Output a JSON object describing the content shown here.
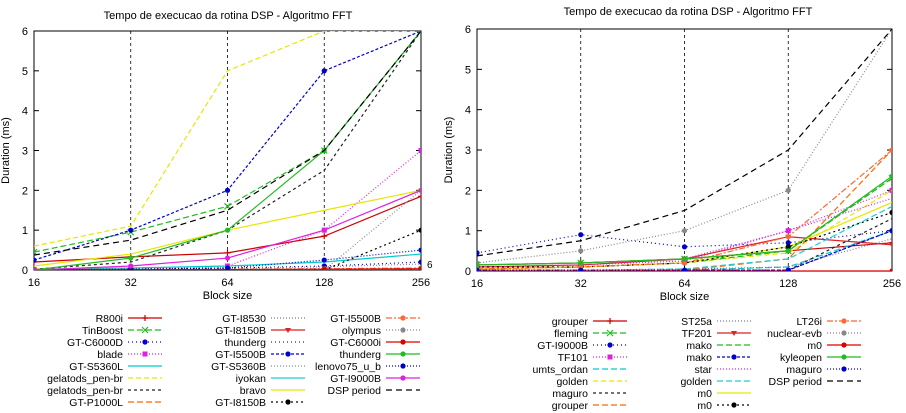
{
  "chart_data": [
    {
      "type": "line",
      "title": "Tempo de execucao da rotina DSP - Algoritmo FFT",
      "xlabel": "Block size",
      "ylabel": "Duration (ms)",
      "xlim": [
        16,
        256
      ],
      "ylim": [
        0,
        6
      ],
      "x_ticks": [
        16,
        32,
        64,
        128,
        256
      ],
      "x_tick_labels": [
        "16",
        "32",
        "64",
        "128",
        "256"
      ],
      "y_ticks": [
        0,
        1,
        2,
        3,
        4,
        5,
        6
      ],
      "grid": "vertical dashed at x ticks",
      "legend_position": "bottom",
      "annotations": [
        {
          "x": 256,
          "y": 0.15,
          "text": "6"
        }
      ],
      "x": [
        16,
        32,
        64,
        128,
        256
      ],
      "series": [
        {
          "name": "R800i",
          "color": "#cc0000",
          "dash": "",
          "marker": "plus",
          "values": [
            0.2,
            0.33,
            0.43,
            0.85,
            1.85
          ]
        },
        {
          "name": "TinBoost",
          "color": "#22bb22",
          "dash": "6,3",
          "marker": "cross",
          "values": [
            0.45,
            0.95,
            1.6,
            3.0,
            6.0
          ]
        },
        {
          "name": "GT-C6000D",
          "color": "#0000cc",
          "dash": "1,3",
          "marker": "dot",
          "values": [
            0.01,
            0.02,
            0.05,
            0.1,
            0.2
          ]
        },
        {
          "name": "blade",
          "color": "#dd22dd",
          "dash": "1,2",
          "marker": "square",
          "values": [
            0.01,
            0.03,
            0.1,
            1.0,
            3.0
          ]
        },
        {
          "name": "GT-S5360L",
          "color": "#00cccc",
          "dash": "",
          "marker": "none",
          "values": [
            0.02,
            0.05,
            0.1,
            0.2,
            0.4
          ]
        },
        {
          "name": "gelatods_pen-br",
          "color": "#e6e600",
          "dash": "5,3",
          "marker": "none",
          "values": [
            0.6,
            1.1,
            5.0,
            6.0,
            6.0
          ]
        },
        {
          "name": "gelatods_pen-br",
          "color": "#222222",
          "dash": "3,3",
          "marker": "none",
          "values": [
            0.02,
            0.2,
            1.0,
            2.5,
            6.0
          ]
        },
        {
          "name": "GT-P1000L",
          "color": "#ff6600",
          "dash": "6,3",
          "marker": "none",
          "values": [
            0.01,
            0.01,
            0.01,
            0.01,
            0.02
          ]
        },
        {
          "name": "GT-I8530",
          "color": "#7777aa",
          "dash": "1,2",
          "marker": "none",
          "values": [
            0.01,
            0.01,
            0.01,
            0.01,
            0.02
          ]
        },
        {
          "name": "GT-I8150B",
          "color": "#dd2222",
          "dash": "",
          "marker": "triangle",
          "values": [
            0.0,
            0.0,
            0.0,
            0.0,
            0.02
          ]
        },
        {
          "name": "thunderg",
          "color": "#333333",
          "dash": "1,3",
          "marker": "none",
          "values": [
            0.01,
            0.01,
            0.02,
            0.03,
            0.05
          ]
        },
        {
          "name": "GT-I5500B",
          "color": "#0000cc",
          "dash": "3,2",
          "marker": "dot",
          "values": [
            0.25,
            1.0,
            2.0,
            5.0,
            6.0
          ]
        },
        {
          "name": "GT-S5360B",
          "color": "#8888cc",
          "dash": "1,2",
          "marker": "none",
          "values": [
            0.01,
            0.02,
            0.04,
            0.08,
            0.15
          ]
        },
        {
          "name": "iyokan",
          "color": "#22cccc",
          "dash": "",
          "marker": "none",
          "values": [
            0.01,
            0.01,
            0.01,
            0.02,
            0.03
          ]
        },
        {
          "name": "bravo",
          "color": "#e6e600",
          "dash": "",
          "marker": "none",
          "values": [
            0.1,
            0.4,
            1.0,
            1.5,
            2.0
          ]
        },
        {
          "name": "GT-I8150B",
          "color": "#000000",
          "dash": "2,3",
          "marker": "dot",
          "values": [
            0.0,
            0.0,
            0.0,
            0.0,
            1.0
          ]
        },
        {
          "name": "GT-I5500B",
          "color": "#ff6633",
          "dash": "6,2,2,2",
          "marker": "dot",
          "values": [
            0.02,
            0.02,
            0.02,
            0.03,
            0.05
          ]
        },
        {
          "name": "olympus",
          "color": "#888888",
          "dash": "1,2",
          "marker": "dot",
          "values": [
            0.0,
            0.0,
            0.0,
            0.0,
            2.0
          ]
        },
        {
          "name": "GT-C6000i",
          "color": "#dd0000",
          "dash": "",
          "marker": "dot",
          "values": [
            0.01,
            0.01,
            0.01,
            0.02,
            0.03
          ]
        },
        {
          "name": "thunderg",
          "color": "#22bb22",
          "dash": "",
          "marker": "dot",
          "values": [
            0.0,
            0.3,
            1.0,
            3.0,
            6.0
          ]
        },
        {
          "name": "lenovo75_u_b",
          "color": "#0000cc",
          "dash": "1,2",
          "marker": "dot",
          "values": [
            0.0,
            0.02,
            0.05,
            0.25,
            0.5
          ]
        },
        {
          "name": "GT-I9000B",
          "color": "#dd22dd",
          "dash": "",
          "marker": "dot",
          "values": [
            0.0,
            0.1,
            0.3,
            1.0,
            2.0
          ]
        },
        {
          "name": "DSP period",
          "color": "#000000",
          "dash": "6,4",
          "marker": "none",
          "values": [
            0.375,
            0.75,
            1.5,
            3.0,
            6.0
          ]
        }
      ],
      "legend_entries": [
        "R800i",
        "TinBoost",
        "GT-C6000D",
        "blade",
        "GT-S5360L",
        "gelatods_pen-br",
        "gelatods_pen-br",
        "GT-P1000L",
        "GT-I8530",
        "GT-I8150B",
        "thunderg",
        "GT-I5500B",
        "GT-S5360B",
        "iyokan",
        "bravo",
        "GT-I8150B",
        "GT-I5500B",
        "olympus",
        "GT-C6000i",
        "thunderg",
        "lenovo75_u_b",
        "GT-I9000B",
        "DSP period"
      ]
    },
    {
      "type": "line",
      "title": "Tempo de execucao da rotina DSP - Algoritmo FFT",
      "xlabel": "Block size",
      "ylabel": "Duration (ms)",
      "xlim": [
        16,
        256
      ],
      "ylim": [
        0,
        6
      ],
      "x_ticks": [
        16,
        32,
        64,
        128,
        256
      ],
      "x_tick_labels": [
        "16",
        "32",
        "64",
        "128",
        "256"
      ],
      "y_ticks": [
        0,
        1,
        2,
        3,
        4,
        5,
        6
      ],
      "grid": "vertical dashed at x ticks",
      "legend_position": "bottom",
      "x": [
        16,
        32,
        64,
        128,
        256
      ],
      "series": [
        {
          "name": "grouper",
          "color": "#cc0000",
          "dash": "",
          "marker": "plus",
          "values": [
            0.15,
            0.2,
            0.3,
            0.5,
            0.7
          ]
        },
        {
          "name": "fleming",
          "color": "#22bb22",
          "dash": "6,3",
          "marker": "cross",
          "values": [
            0.15,
            0.2,
            0.3,
            0.5,
            2.3
          ]
        },
        {
          "name": "GT-I9000B",
          "color": "#0000cc",
          "dash": "1,3",
          "marker": "dot",
          "values": [
            0.45,
            0.9,
            0.6,
            0.7,
            1.0
          ]
        },
        {
          "name": "TF101",
          "color": "#dd22dd",
          "dash": "1,2",
          "marker": "square",
          "values": [
            0.1,
            0.15,
            0.25,
            1.0,
            2.0
          ]
        },
        {
          "name": "umts_ordan",
          "color": "#00cccc",
          "dash": "6,3",
          "marker": "none",
          "values": [
            0.01,
            0.01,
            0.02,
            0.1,
            1.0
          ]
        },
        {
          "name": "golden",
          "color": "#e6e600",
          "dash": "5,3",
          "marker": "none",
          "values": [
            0.1,
            0.1,
            0.2,
            0.45,
            2.0
          ]
        },
        {
          "name": "maguro",
          "color": "#222222",
          "dash": "3,3",
          "marker": "none",
          "values": [
            0.02,
            0.02,
            0.02,
            0.02,
            1.3
          ]
        },
        {
          "name": "grouper",
          "color": "#ff6600",
          "dash": "6,3",
          "marker": "none",
          "values": [
            0.02,
            0.02,
            0.02,
            0.3,
            3.0
          ]
        },
        {
          "name": "ST25a",
          "color": "#7777aa",
          "dash": "1,2",
          "marker": "none",
          "values": [
            0.02,
            0.02,
            0.05,
            0.1,
            0.8
          ]
        },
        {
          "name": "TF201",
          "color": "#dd2222",
          "dash": "",
          "marker": "triangle",
          "values": [
            0.1,
            0.15,
            0.3,
            0.85,
            0.65
          ]
        },
        {
          "name": "mako",
          "color": "#22bb22",
          "dash": "6,3",
          "marker": "none",
          "values": [
            0.05,
            0.1,
            0.2,
            0.5,
            2.3
          ]
        },
        {
          "name": "mako",
          "color": "#0000cc",
          "dash": "3,2",
          "marker": "dot",
          "values": [
            0.02,
            0.02,
            0.02,
            0.02,
            1.0
          ]
        },
        {
          "name": "star",
          "color": "#dd22dd",
          "dash": "1,2",
          "marker": "none",
          "values": [
            0.1,
            0.15,
            0.3,
            1.0,
            1.8
          ]
        },
        {
          "name": "golden",
          "color": "#22cccc",
          "dash": "6,3",
          "marker": "none",
          "values": [
            0.02,
            0.02,
            0.05,
            0.3,
            1.6
          ]
        },
        {
          "name": "m0",
          "color": "#e6e600",
          "dash": "",
          "marker": "none",
          "values": [
            0.05,
            0.1,
            0.2,
            0.6,
            1.7
          ]
        },
        {
          "name": "m0",
          "color": "#000000",
          "dash": "2,3",
          "marker": "dot",
          "values": [
            0.1,
            0.1,
            0.2,
            0.6,
            1.45
          ]
        },
        {
          "name": "LT26i",
          "color": "#ff6633",
          "dash": "6,2,2,2",
          "marker": "dot",
          "values": [
            0.05,
            0.1,
            0.2,
            0.85,
            3.0
          ]
        },
        {
          "name": "nuclear-evb",
          "color": "#888888",
          "dash": "1,2",
          "marker": "dot",
          "values": [
            0.2,
            0.5,
            1.0,
            2.0,
            6.0
          ]
        },
        {
          "name": "m0",
          "color": "#dd0000",
          "dash": "",
          "marker": "dot",
          "values": [
            0.0,
            0.0,
            0.0,
            0.0,
            0.0
          ]
        },
        {
          "name": "kyleopen",
          "color": "#22bb22",
          "dash": "",
          "marker": "dot",
          "values": [
            0.15,
            0.2,
            0.3,
            0.5,
            2.35
          ]
        },
        {
          "name": "maguro",
          "color": "#0000cc",
          "dash": "1,2",
          "marker": "dot",
          "values": [
            0.02,
            0.02,
            0.02,
            0.02,
            1.0
          ]
        },
        {
          "name": "DSP period",
          "color": "#000000",
          "dash": "6,4",
          "marker": "none",
          "values": [
            0.375,
            0.75,
            1.5,
            3.0,
            6.0
          ]
        }
      ],
      "legend_entries": [
        "grouper",
        "fleming",
        "GT-I9000B",
        "TF101",
        "umts_ordan",
        "golden",
        "maguro",
        "grouper",
        "ST25a",
        "TF201",
        "mako",
        "mako",
        "star",
        "golden",
        "m0",
        "m0",
        "LT26i",
        "nuclear-evb",
        "m0",
        "kyleopen",
        "maguro",
        "DSP period"
      ]
    }
  ]
}
